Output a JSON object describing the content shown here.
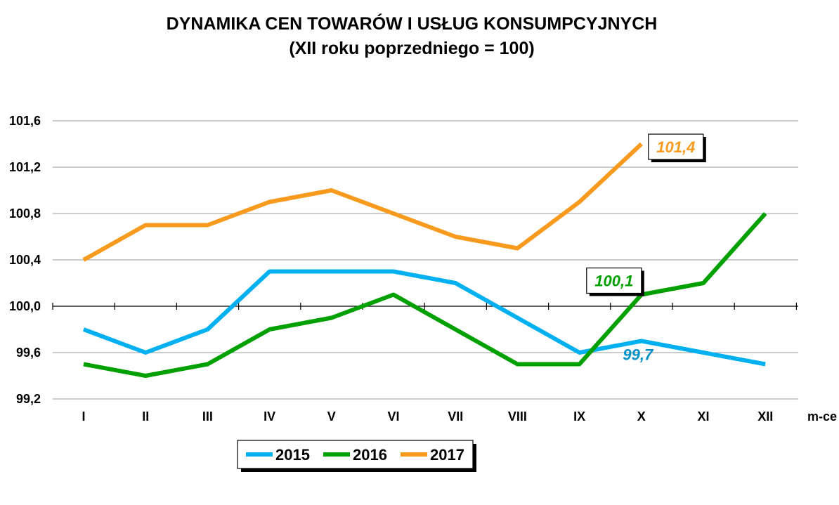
{
  "chart_data": {
    "type": "line",
    "title": "DYNAMIKA CEN TOWARÓW I USŁUG KONSUMPCYJNYCH",
    "subtitle": "(XII roku poprzedniego = 100)",
    "xlabel": "m-ce",
    "ylabel": "",
    "categories": [
      "I",
      "II",
      "III",
      "IV",
      "V",
      "VI",
      "VII",
      "VIII",
      "IX",
      "X",
      "XI",
      "XII"
    ],
    "ylim": [
      99.2,
      101.6
    ],
    "yticks": [
      99.2,
      99.6,
      100.0,
      100.4,
      100.8,
      101.2,
      101.6
    ],
    "ytick_labels": [
      "99,2",
      "99,6",
      "100,0",
      "100,4",
      "100,8",
      "101,2",
      "101,6"
    ],
    "x_axis_at": 100.0,
    "grid": true,
    "series": [
      {
        "name": "2015",
        "color": "#00B0F0",
        "values": [
          99.8,
          99.6,
          99.8,
          100.3,
          100.3,
          100.3,
          100.2,
          99.9,
          99.6,
          99.7,
          99.6,
          99.5
        ]
      },
      {
        "name": "2016",
        "color": "#00A000",
        "values": [
          99.5,
          99.4,
          99.5,
          99.8,
          99.9,
          100.1,
          99.8,
          99.5,
          99.5,
          100.1,
          100.2,
          100.8
        ]
      },
      {
        "name": "2017",
        "color": "#F79A1E",
        "values": [
          100.4,
          100.7,
          100.7,
          100.9,
          101.0,
          100.8,
          100.6,
          100.5,
          100.9,
          101.4,
          null,
          null
        ]
      }
    ],
    "annotations": [
      {
        "text": "101,4",
        "series": "2017",
        "category": "X",
        "color": "#F79A1E",
        "boxed": true
      },
      {
        "text": "100,1",
        "series": "2016",
        "category": "X",
        "color": "#00A000",
        "boxed": true
      },
      {
        "text": "99,7",
        "series": "2015",
        "category": "X",
        "color": "#0090C8",
        "boxed": false
      }
    ],
    "legend": {
      "position": "bottom-center",
      "entries": [
        "2015",
        "2016",
        "2017"
      ]
    }
  }
}
